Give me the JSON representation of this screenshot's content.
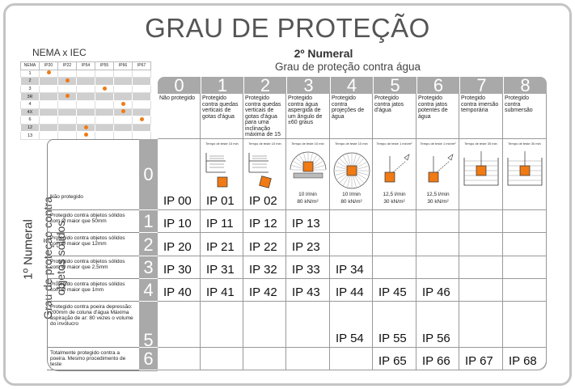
{
  "title": "GRAU DE PROTEÇÃO",
  "second_numeral": {
    "title": "2º Numeral",
    "subtitle": "Grau de proteção contra água"
  },
  "first_numeral": {
    "title": "1º Numeral",
    "subtitle": "Grau de proteção contra objetos sólidos"
  },
  "nema": {
    "title": "NEMA x IEC",
    "corner": "NEMA",
    "columns": [
      "IP20",
      "IP22",
      "IP54",
      "IP55",
      "IP66",
      "IP67"
    ],
    "rows": [
      {
        "nema": "1",
        "ip": "IP20"
      },
      {
        "nema": "2",
        "ip": "IP22"
      },
      {
        "nema": "3",
        "ip": "IP55"
      },
      {
        "nema": "3R",
        "ip": "IP22"
      },
      {
        "nema": "4",
        "ip": "IP66"
      },
      {
        "nema": "4X",
        "ip": "IP66"
      },
      {
        "nema": "6",
        "ip": "IP67"
      },
      {
        "nema": "12",
        "ip": "IP54"
      },
      {
        "nema": "13",
        "ip": "IP54"
      }
    ],
    "dot_color": "#f07a14"
  },
  "columns": [
    {
      "num": "0",
      "desc": "Não protegido",
      "test": "",
      "flow": ""
    },
    {
      "num": "1",
      "desc": "Protegido contra quedas verticais de gotas d'água",
      "test": "Tempo de teste 10 min",
      "flow": ""
    },
    {
      "num": "2",
      "desc": "Protegido contra quedas verticais de gotas d'água para uma inclinação máxima de 15 graus",
      "test": "Tempo de teste 10 min",
      "flow": ""
    },
    {
      "num": "3",
      "desc": "Protegido contra água aspergida de um ângulo de ±60 graus",
      "test": "Tempo de teste 10 min",
      "flow": "10 l/min\n80 kN/m²"
    },
    {
      "num": "4",
      "desc": "Protegido contra projeções de água",
      "test": "Tempo de teste 10 min",
      "flow": "10 l/min\n80 kN/m²"
    },
    {
      "num": "5",
      "desc": "Protegido contra jatos d'água",
      "test": "Tempo de teste 1 min/m²",
      "flow": "12,5 l/min\n30 kN/m²"
    },
    {
      "num": "6",
      "desc": "Protegido contra jatos potentes de água",
      "test": "Tempo de teste 1 min/m²",
      "flow": "12,5 l/min\n30 kN/m²"
    },
    {
      "num": "7",
      "desc": "Protegido contra imersão temporária",
      "test": "Tempo de teste 30 min",
      "flow": ""
    },
    {
      "num": "8",
      "desc": "Protegido contra submersão",
      "test": "Tempo de teste 30 min",
      "flow": ""
    }
  ],
  "rows": [
    {
      "num": "0",
      "desc": "Não protegido",
      "codes": [
        "IP 00",
        "IP 01",
        "IP 02",
        "",
        "",
        "",
        "",
        "",
        ""
      ]
    },
    {
      "num": "1",
      "desc": "Protegido contra objetos sólidos com Ø maior que 50mm",
      "codes": [
        "IP 10",
        "IP 11",
        "IP 12",
        "IP 13",
        "",
        "",
        "",
        "",
        ""
      ]
    },
    {
      "num": "2",
      "desc": "Protegido contra objetos sólidos com Ø maior que 12mm",
      "codes": [
        "IP 20",
        "IP 21",
        "IP 22",
        "IP 23",
        "",
        "",
        "",
        "",
        ""
      ]
    },
    {
      "num": "3",
      "desc": "Protegido contra objetos sólidos com Ø maior que 2,5mm",
      "codes": [
        "IP 30",
        "IP 31",
        "IP 32",
        "IP 33",
        "IP 34",
        "",
        "",
        "",
        ""
      ]
    },
    {
      "num": "4",
      "desc": "Protegido contra objetos sólidos com Ø maior que 1mm",
      "codes": [
        "IP 40",
        "IP 41",
        "IP 42",
        "IP 43",
        "IP 44",
        "IP 45",
        "IP 46",
        "",
        ""
      ]
    },
    {
      "num": "5",
      "desc": "Protegido contra poeira depressão: 200mm de coluna d'água Máxima aspiração de ar: 80 vezes o volume do invólucro",
      "codes": [
        "",
        "",
        "",
        "",
        "IP 54",
        "IP 55",
        "IP 56",
        "",
        ""
      ]
    },
    {
      "num": "6",
      "desc": "Totalmente protegido contra a poeira. Mesmo procedimento de teste",
      "codes": [
        "",
        "",
        "",
        "",
        "",
        "IP 65",
        "IP 66",
        "IP 67",
        "IP 68"
      ]
    }
  ],
  "colors": {
    "header_gray": "#a9a9a9",
    "accent": "#f07a14",
    "title": "#555555"
  }
}
